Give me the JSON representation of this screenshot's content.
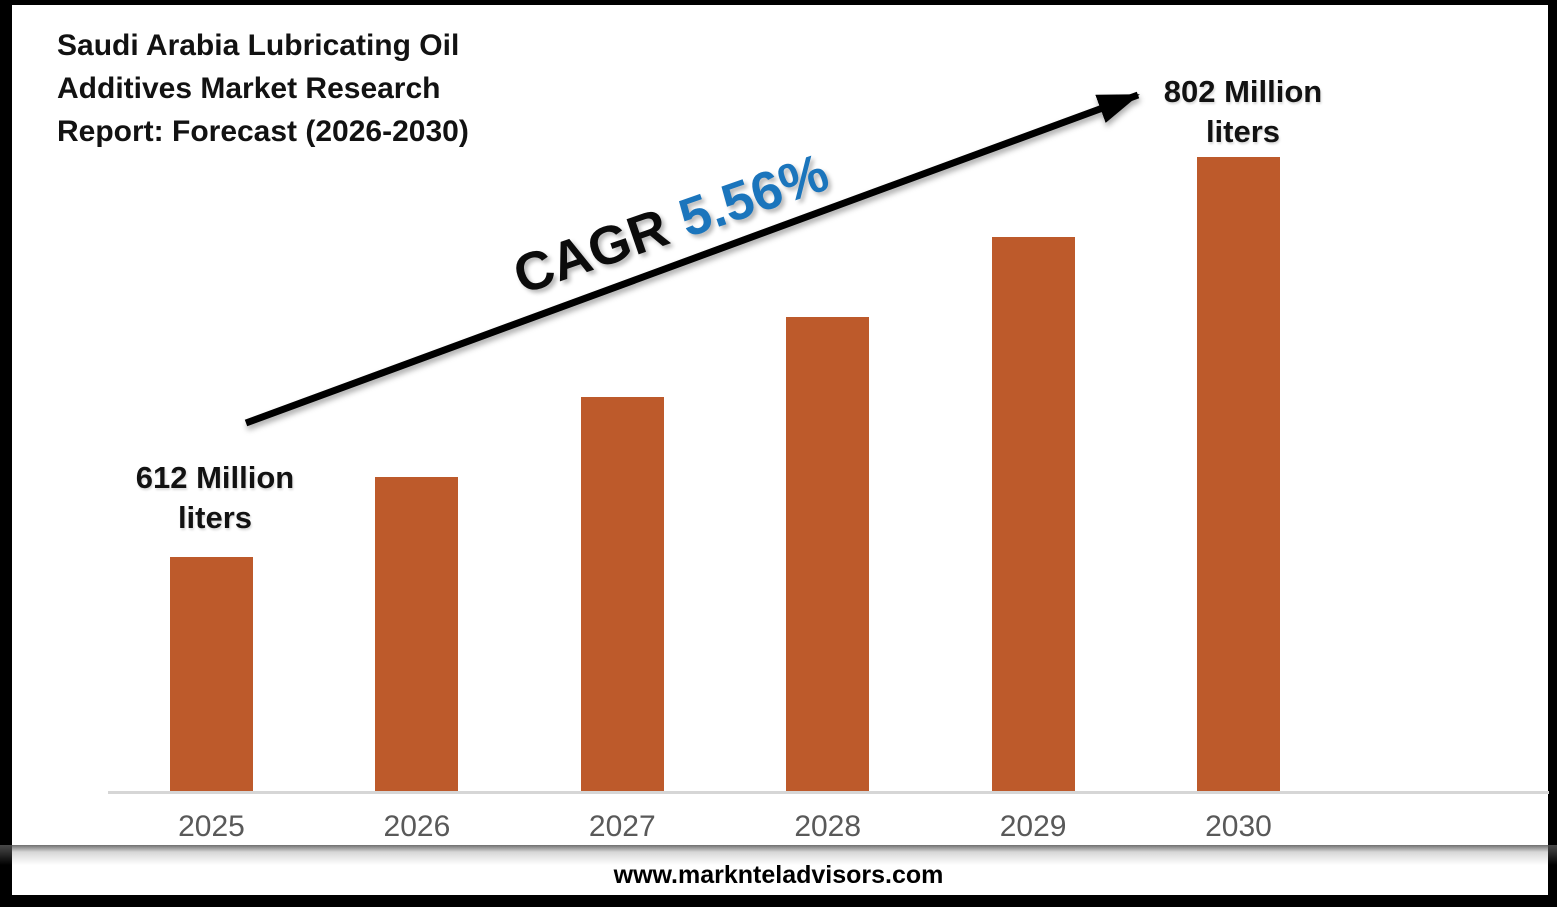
{
  "header": {
    "title_lines": [
      "Saudi Arabia Lubricating Oil",
      "Additives Market Research",
      "Report: Forecast (2026-2030)"
    ]
  },
  "annotations": {
    "cagr_prefix": "CAGR",
    "cagr_value": "5.56%",
    "first_bar_label": "612 Million liters",
    "last_bar_label": "802 Million liters"
  },
  "footer": {
    "website": "www.marknteladvisors.com"
  },
  "colors": {
    "bar": "#BD5A2B",
    "cagr_value_blue": "#1B75BC",
    "axis_label": "#595959",
    "axis_line": "#D6D6D6",
    "title_text": "#121212",
    "arrow": "#000000"
  },
  "chart_data": {
    "type": "bar",
    "title": "Saudi Arabia Lubricating Oil Additives Market Research Report: Forecast (2026-2030)",
    "categories": [
      "2025",
      "2026",
      "2027",
      "2028",
      "2029",
      "2030"
    ],
    "values": [
      612,
      650,
      688,
      726,
      764,
      802
    ],
    "unit": "Million liters",
    "labeled_points": {
      "2025": "612 Million liters",
      "2030": "802 Million liters"
    },
    "cagr": "5.56%",
    "xlabel": "",
    "ylabel": "",
    "ylim": [
      500,
      820
    ],
    "grid": false,
    "legend": false,
    "annotation": "CAGR 5.56%"
  }
}
